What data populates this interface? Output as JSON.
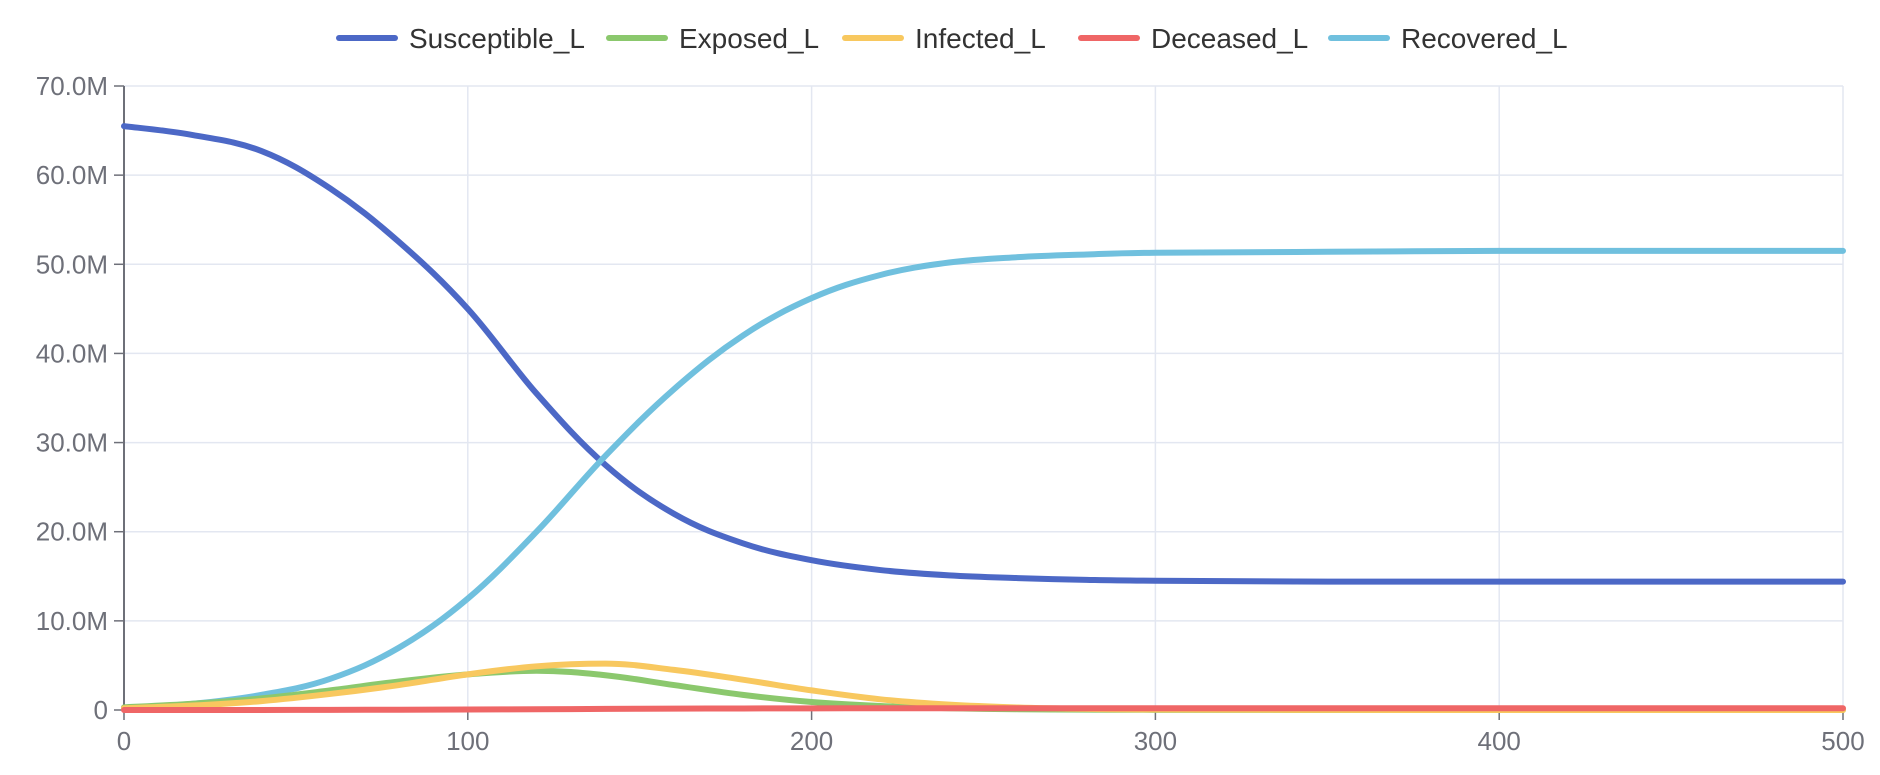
{
  "chart_data": {
    "type": "line",
    "title": "",
    "xlabel": "",
    "ylabel": "",
    "xlim": [
      0,
      500
    ],
    "ylim": [
      0,
      70000000
    ],
    "x_ticks": [
      0,
      100,
      200,
      300,
      400,
      500
    ],
    "x_tick_labels": [
      "0",
      "100",
      "200",
      "300",
      "400",
      "500"
    ],
    "y_ticks": [
      0,
      10000000,
      20000000,
      30000000,
      40000000,
      50000000,
      60000000,
      70000000
    ],
    "y_tick_labels": [
      "0",
      "10.0M",
      "20.0M",
      "30.0M",
      "40.0M",
      "50.0M",
      "60.0M",
      "70.0M"
    ],
    "grid": true,
    "legend_position": "top-center",
    "x": [
      0,
      20,
      40,
      60,
      80,
      100,
      120,
      140,
      160,
      180,
      200,
      220,
      240,
      260,
      280,
      300,
      350,
      400,
      450,
      500
    ],
    "series": [
      {
        "name": "Susceptible_L",
        "color": "#4c68c6",
        "values": [
          65500000,
          64500000,
          62700000,
          58500000,
          52500000,
          45000000,
          35500000,
          27500000,
          22000000,
          18700000,
          16800000,
          15700000,
          15100000,
          14800000,
          14600000,
          14500000,
          14400000,
          14400000,
          14400000,
          14400000
        ]
      },
      {
        "name": "Exposed_L",
        "color": "#8bc86d",
        "values": [
          300000,
          700000,
          1300000,
          2200000,
          3200000,
          4000000,
          4400000,
          3900000,
          2800000,
          1700000,
          900000,
          450000,
          200000,
          90000,
          40000,
          20000,
          5000,
          1000,
          0,
          0
        ]
      },
      {
        "name": "Infected_L",
        "color": "#f8c85f",
        "values": [
          200000,
          500000,
          1000000,
          1800000,
          2800000,
          4000000,
          4900000,
          5200000,
          4500000,
          3400000,
          2200000,
          1200000,
          600000,
          280000,
          120000,
          50000,
          10000,
          2000,
          0,
          0
        ]
      },
      {
        "name": "Deceased_L",
        "color": "#ef6666",
        "values": [
          0,
          2000,
          6000,
          15000,
          30000,
          55000,
          85000,
          120000,
          150000,
          172000,
          186000,
          193000,
          196000,
          198000,
          199000,
          200000,
          200000,
          200000,
          200000,
          200000
        ]
      },
      {
        "name": "Recovered_L",
        "color": "#70c0de",
        "values": [
          200000,
          700000,
          1700000,
          3500000,
          7000000,
          12500000,
          20000000,
          28500000,
          36000000,
          42000000,
          46200000,
          48800000,
          50200000,
          50800000,
          51100000,
          51300000,
          51400000,
          51500000,
          51500000,
          51500000
        ]
      }
    ]
  }
}
